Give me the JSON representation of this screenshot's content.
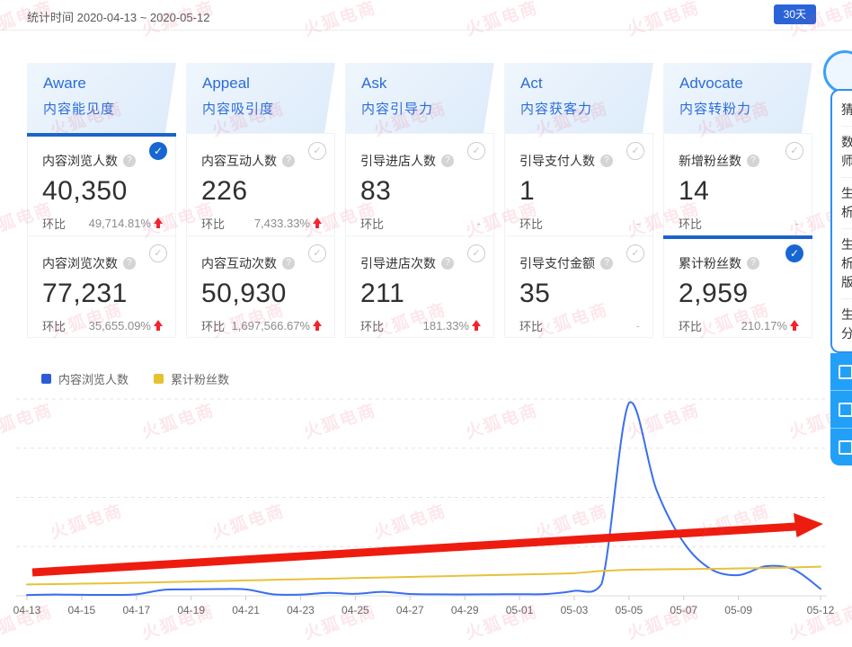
{
  "topbar": {
    "stat_time": "统计时间 2020-04-13 ~ 2020-05-12",
    "range_button": "30天"
  },
  "funnel": {
    "columns": [
      {
        "name_en": "Aware",
        "name_zh": "内容能见度",
        "cards": [
          {
            "label": "内容浏览人数",
            "value": "40,350",
            "compare_label": "环比",
            "change": "49,714.81%",
            "direction": "up",
            "selected": true
          },
          {
            "label": "内容浏览次数",
            "value": "77,231",
            "compare_label": "环比",
            "change": "35,655.09%",
            "direction": "up",
            "selected": false
          }
        ]
      },
      {
        "name_en": "Appeal",
        "name_zh": "内容吸引度",
        "cards": [
          {
            "label": "内容互动人数",
            "value": "226",
            "compare_label": "环比",
            "change": "7,433.33%",
            "direction": "up",
            "selected": false
          },
          {
            "label": "内容互动次数",
            "value": "50,930",
            "compare_label": "环比",
            "change": "1,697,566.67%",
            "direction": "up",
            "selected": false
          }
        ]
      },
      {
        "name_en": "Ask",
        "name_zh": "内容引导力",
        "cards": [
          {
            "label": "引导进店人数",
            "value": "83",
            "compare_label": "环比",
            "change": "-",
            "direction": "none",
            "selected": false
          },
          {
            "label": "引导进店次数",
            "value": "211",
            "compare_label": "环比",
            "change": "181.33%",
            "direction": "up",
            "selected": false
          }
        ]
      },
      {
        "name_en": "Act",
        "name_zh": "内容获客力",
        "cards": [
          {
            "label": "引导支付人数",
            "value": "1",
            "compare_label": "环比",
            "change": "-",
            "direction": "none",
            "selected": false
          },
          {
            "label": "引导支付金额",
            "value": "35",
            "compare_label": "环比",
            "change": "-",
            "direction": "none",
            "selected": false
          }
        ]
      },
      {
        "name_en": "Advocate",
        "name_zh": "内容转粉力",
        "cards": [
          {
            "label": "新增粉丝数",
            "value": "14",
            "compare_label": "环比",
            "change": "-",
            "direction": "none",
            "selected": false
          },
          {
            "label": "累计粉丝数",
            "value": "2,959",
            "compare_label": "环比",
            "change": "210.17%",
            "direction": "up",
            "selected": true
          }
        ]
      }
    ]
  },
  "legend": [
    {
      "label": "内容浏览人数",
      "color": "#2b5bd7"
    },
    {
      "label": "累计粉丝数",
      "color": "#e6c230"
    }
  ],
  "chart_data": {
    "type": "line",
    "x": [
      "04-13",
      "04-14",
      "04-15",
      "04-16",
      "04-17",
      "04-18",
      "04-19",
      "04-20",
      "04-21",
      "04-22",
      "04-23",
      "04-24",
      "04-25",
      "04-26",
      "04-27",
      "04-28",
      "04-29",
      "04-30",
      "05-01",
      "05-02",
      "05-03",
      "05-04",
      "05-05",
      "05-06",
      "05-07",
      "05-08",
      "05-09",
      "05-10",
      "05-11",
      "05-12"
    ],
    "series": [
      {
        "name": "内容浏览人数",
        "color": "#3a6df0",
        "values": [
          80,
          120,
          100,
          90,
          150,
          600,
          650,
          680,
          650,
          150,
          120,
          300,
          200,
          400,
          180,
          150,
          140,
          150,
          160,
          180,
          500,
          1200,
          19600,
          10800,
          5400,
          2700,
          2100,
          3000,
          2700,
          700
        ]
      },
      {
        "name": "累计粉丝数",
        "color": "#e6c23c",
        "values": [
          1150,
          1190,
          1230,
          1270,
          1320,
          1380,
          1440,
          1500,
          1560,
          1620,
          1680,
          1740,
          1800,
          1860,
          1920,
          1980,
          2040,
          2100,
          2160,
          2220,
          2300,
          2520,
          2640,
          2680,
          2710,
          2740,
          2780,
          2820,
          2880,
          2959
        ]
      }
    ],
    "x_tick_labels": [
      "04-13",
      "04-15",
      "04-17",
      "04-19",
      "04-21",
      "04-23",
      "04-25",
      "04-27",
      "04-29",
      "05-01",
      "05-03",
      "05-05",
      "05-07",
      "05-09",
      "05-12"
    ],
    "x_tick_indices": [
      0,
      2,
      4,
      6,
      8,
      10,
      12,
      14,
      16,
      18,
      20,
      22,
      24,
      26,
      29
    ],
    "ylim": [
      0,
      20000
    ],
    "y_gridlines": [
      5000,
      10000,
      15000,
      20000
    ],
    "y_axis_labels_visible": false,
    "grid_dashed": true,
    "legend_position": "top-left",
    "annotation": {
      "type": "trend-arrow",
      "color": "#ee1c0f",
      "description": "thick red upward trend arrow drawn across chart from lower-left to upper-right"
    }
  },
  "right_panel": {
    "items": [
      {
        "lines": [
          "猜"
        ]
      },
      {
        "lines": [
          "数",
          "师"
        ]
      },
      {
        "lines": [
          "生",
          "析"
        ]
      },
      {
        "lines": [
          "生",
          "析",
          "版"
        ]
      },
      {
        "lines": [
          "生",
          "分"
        ]
      }
    ],
    "action_rows": [
      {
        "icon": "panel-tool-1"
      },
      {
        "icon": "panel-tool-2"
      },
      {
        "icon": "panel-tool-3"
      }
    ]
  },
  "watermark": {
    "text": "火狐电商",
    "color": "#e9486c"
  }
}
